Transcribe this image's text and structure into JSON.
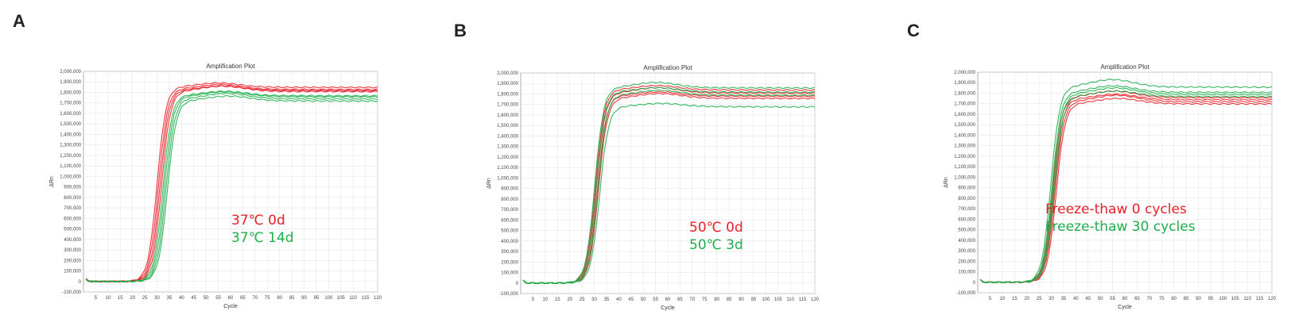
{
  "panels": [
    {
      "letter": "A",
      "legend": [
        {
          "label": "37℃ 0d",
          "color": "#e8202a"
        },
        {
          "label": "37℃ 14d",
          "color": "#1fae4c"
        }
      ]
    },
    {
      "letter": "B",
      "legend": [
        {
          "label": "50℃ 0d",
          "color": "#e8202a"
        },
        {
          "label": "50℃ 3d",
          "color": "#1fae4c"
        }
      ]
    },
    {
      "letter": "C",
      "legend": [
        {
          "label": "Freeze-thaw 0 cycles",
          "color": "#e8202a"
        },
        {
          "label": "Freeze-thaw 30 cycles",
          "color": "#1fae4c"
        }
      ]
    }
  ],
  "chart_data": [
    {
      "type": "line",
      "title": "Amplification Plot",
      "xlabel": "Cycle",
      "ylabel": "ΔRn",
      "xlim": [
        0,
        120
      ],
      "ylim": [
        -100000,
        2000000
      ],
      "x_ticks": [
        5,
        10,
        15,
        20,
        25,
        30,
        35,
        40,
        45,
        50,
        55,
        60,
        65,
        70,
        75,
        80,
        85,
        90,
        95,
        100,
        105,
        110,
        115,
        120
      ],
      "y_ticks": [
        -100000,
        0,
        100000,
        200000,
        300000,
        400000,
        500000,
        600000,
        700000,
        800000,
        900000,
        1000000,
        1100000,
        1200000,
        1300000,
        1400000,
        1500000,
        1600000,
        1700000,
        1800000,
        1900000,
        2000000
      ],
      "y_tick_labels": [
        "-100,000",
        "0",
        "100,000",
        "200,000",
        "300,000",
        "400,000",
        "500,000",
        "600,000",
        "700,000",
        "800,000",
        "900,000",
        "1,000,000",
        "1,100,000",
        "1,200,000",
        "1,300,000",
        "1,400,000",
        "1,500,000",
        "1,600,000",
        "1,700,000",
        "1,800,000",
        "1,900,000",
        "2,000,000"
      ],
      "grid": true,
      "colors": {
        "red": "#e8202a",
        "green": "#1fae4c"
      },
      "groups": [
        {
          "name": "37℃ 0d",
          "color": "red",
          "curves": [
            {
              "ct": 30.0,
              "plateau": 1850000,
              "bump": 40000
            },
            {
              "ct": 30.6,
              "plateau": 1830000,
              "bump": 45000
            },
            {
              "ct": 31.2,
              "plateau": 1820000,
              "bump": 40000
            },
            {
              "ct": 31.8,
              "plateau": 1810000,
              "bump": 50000
            }
          ]
        },
        {
          "name": "37℃ 14d",
          "color": "green",
          "curves": [
            {
              "ct": 32.4,
              "plateau": 1770000,
              "bump": 40000
            },
            {
              "ct": 33.0,
              "plateau": 1760000,
              "bump": 45000
            },
            {
              "ct": 33.6,
              "plateau": 1740000,
              "bump": 50000
            },
            {
              "ct": 34.2,
              "plateau": 1720000,
              "bump": 45000
            }
          ]
        }
      ]
    },
    {
      "type": "line",
      "title": "Amplification Plot",
      "xlabel": "Cycle",
      "ylabel": "ΔRn",
      "xlim": [
        0,
        120
      ],
      "ylim": [
        -100000,
        2000000
      ],
      "x_ticks": [
        5,
        10,
        15,
        20,
        25,
        30,
        35,
        40,
        45,
        50,
        55,
        60,
        65,
        70,
        75,
        80,
        85,
        90,
        95,
        100,
        105,
        110,
        115,
        120
      ],
      "y_ticks": [
        -100000,
        0,
        100000,
        200000,
        300000,
        400000,
        500000,
        600000,
        700000,
        800000,
        900000,
        1000000,
        1100000,
        1200000,
        1300000,
        1400000,
        1500000,
        1600000,
        1700000,
        1800000,
        1900000,
        2000000
      ],
      "y_tick_labels": [
        "-100,000",
        "0",
        "100,000",
        "200,000",
        "300,000",
        "400,000",
        "500,000",
        "600,000",
        "700,000",
        "800,000",
        "900,000",
        "1,000,000",
        "1,100,000",
        "1,200,000",
        "1,300,000",
        "1,400,000",
        "1,500,000",
        "1,600,000",
        "1,700,000",
        "1,800,000",
        "1,900,000",
        "2,000,000"
      ],
      "grid": true,
      "colors": {
        "red": "#e8202a",
        "green": "#1fae4c"
      },
      "groups": [
        {
          "name": "50℃ 0d",
          "color": "red",
          "curves": [
            {
              "ct": 30.5,
              "plateau": 1840000,
              "bump": 40000
            },
            {
              "ct": 30.9,
              "plateau": 1810000,
              "bump": 50000
            },
            {
              "ct": 31.3,
              "plateau": 1780000,
              "bump": 40000
            },
            {
              "ct": 31.7,
              "plateau": 1760000,
              "bump": 45000
            }
          ]
        },
        {
          "name": "50℃ 3d",
          "color": "green",
          "curves": [
            {
              "ct": 30.2,
              "plateau": 1860000,
              "bump": 50000
            },
            {
              "ct": 30.8,
              "plateau": 1820000,
              "bump": 40000
            },
            {
              "ct": 31.5,
              "plateau": 1790000,
              "bump": 45000
            },
            {
              "ct": 32.2,
              "plateau": 1680000,
              "bump": 30000
            }
          ]
        }
      ]
    },
    {
      "type": "line",
      "title": "Amplification Plot",
      "xlabel": "Cycle",
      "ylabel": "ΔRn",
      "xlim": [
        0,
        120
      ],
      "ylim": [
        -100000,
        2000000
      ],
      "x_ticks": [
        5,
        10,
        15,
        20,
        25,
        30,
        35,
        40,
        45,
        50,
        55,
        60,
        65,
        70,
        75,
        80,
        85,
        90,
        95,
        100,
        105,
        110,
        115,
        120
      ],
      "y_ticks": [
        -100000,
        0,
        100000,
        200000,
        300000,
        400000,
        500000,
        600000,
        700000,
        800000,
        900000,
        1000000,
        1100000,
        1200000,
        1300000,
        1400000,
        1500000,
        1600000,
        1700000,
        1800000,
        1900000,
        2000000
      ],
      "y_tick_labels": [
        "-100,000",
        "0",
        "100,000",
        "200,000",
        "300,000",
        "400,000",
        "500,000",
        "600,000",
        "700,000",
        "800,000",
        "900,000",
        "1,000,000",
        "1,100,000",
        "1,200,000",
        "1,300,000",
        "1,400,000",
        "1,500,000",
        "1,600,000",
        "1,700,000",
        "1,800,000",
        "1,900,000",
        "2,000,000"
      ],
      "grid": true,
      "colors": {
        "red": "#e8202a",
        "green": "#1fae4c"
      },
      "groups": [
        {
          "name": "Freeze-thaw 0 cycles",
          "color": "red",
          "curves": [
            {
              "ct": 30.5,
              "plateau": 1760000,
              "bump": 60000
            },
            {
              "ct": 31.0,
              "plateau": 1740000,
              "bump": 50000
            },
            {
              "ct": 31.5,
              "plateau": 1720000,
              "bump": 60000
            },
            {
              "ct": 32.0,
              "plateau": 1700000,
              "bump": 50000
            }
          ]
        },
        {
          "name": "Freeze-thaw 30 cycles",
          "color": "green",
          "curves": [
            {
              "ct": 29.8,
              "plateau": 1860000,
              "bump": 70000
            },
            {
              "ct": 30.3,
              "plateau": 1810000,
              "bump": 60000
            },
            {
              "ct": 30.8,
              "plateau": 1790000,
              "bump": 60000
            },
            {
              "ct": 31.3,
              "plateau": 1770000,
              "bump": 50000
            }
          ]
        }
      ]
    }
  ]
}
